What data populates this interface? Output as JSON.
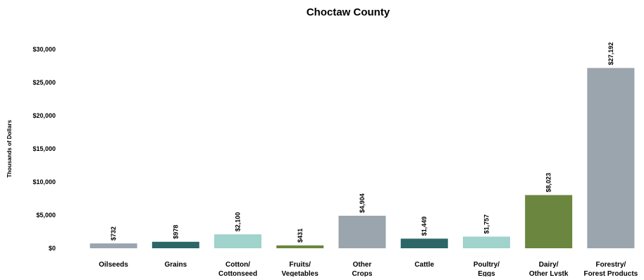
{
  "chart_data": {
    "type": "bar",
    "title": "Choctaw County",
    "xlabel": "",
    "ylabel": "Thousands of Dollars",
    "ylim": [
      0,
      30000
    ],
    "yticks": [
      0,
      5000,
      10000,
      15000,
      20000,
      25000,
      30000
    ],
    "ytick_labels": [
      "$0",
      "$5,000",
      "$10,000",
      "$15,000",
      "$20,000",
      "$25,000",
      "$30,000"
    ],
    "grid": false,
    "legend": "none",
    "categories": [
      [
        "Oilseeds"
      ],
      [
        "Grains"
      ],
      [
        "Cotton/",
        "Cottonseed"
      ],
      [
        "Fruits/",
        "Vegetables"
      ],
      [
        "Other",
        "Crops"
      ],
      [
        "Cattle"
      ],
      [
        "Poultry/",
        "Eggs"
      ],
      [
        "Dairy/",
        "Other Lvstk"
      ],
      [
        "Forestry/",
        "Forest Products"
      ]
    ],
    "values": [
      732,
      978,
      2100,
      431,
      4904,
      1449,
      1757,
      8023,
      27192
    ],
    "data_labels": [
      "$732",
      "$978",
      "$2,100",
      "$431",
      "$4,904",
      "$1,449",
      "$1,757",
      "$8,023",
      "$27,192"
    ],
    "colors": [
      "#9aa5ae",
      "#2c6667",
      "#9fd3cb",
      "#6b863e",
      "#9aa5ae",
      "#2c6667",
      "#9fd3cb",
      "#6b863e",
      "#9aa5ae"
    ]
  }
}
